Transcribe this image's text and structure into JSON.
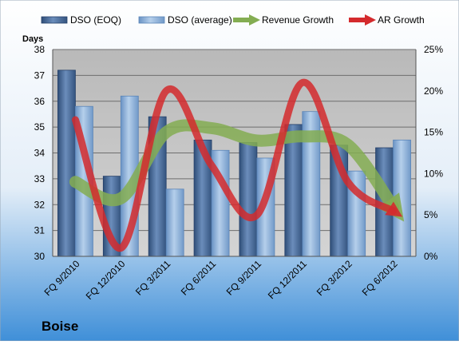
{
  "chart_data": {
    "type": "bar",
    "title": "Boise",
    "y_axis_label": "Days",
    "legend_position": "top",
    "categories": [
      "FQ 9/2010",
      "FQ 12/2010",
      "FQ 3/2011",
      "FQ 6/2011",
      "FQ 9/2011",
      "FQ 12/2011",
      "FQ 3/2012",
      "FQ 6/2012"
    ],
    "series": [
      {
        "name": "DSO (EOQ)",
        "kind": "bar",
        "axis": "left",
        "color": "#4a6b98",
        "values": [
          37.2,
          33.1,
          35.4,
          34.5,
          34.4,
          35.1,
          34.3,
          34.2
        ]
      },
      {
        "name": "DSO (average)",
        "kind": "bar",
        "axis": "left",
        "color": "#8fb3d9",
        "values": [
          35.8,
          36.2,
          32.6,
          34.1,
          33.8,
          35.6,
          33.3,
          34.5
        ]
      },
      {
        "name": "Revenue Growth",
        "kind": "line",
        "axis": "right",
        "color": "#84ad52",
        "values": [
          0.09,
          0.07,
          0.15,
          0.155,
          0.14,
          0.145,
          0.135,
          0.06
        ]
      },
      {
        "name": "AR Growth",
        "kind": "line",
        "axis": "right",
        "color": "#d42a2d",
        "values": [
          0.165,
          0.01,
          0.2,
          0.11,
          0.05,
          0.21,
          0.09,
          0.055
        ]
      }
    ],
    "y_left": {
      "min": 30,
      "max": 38,
      "ticks": [
        30,
        31,
        32,
        33,
        34,
        35,
        36,
        37,
        38
      ]
    },
    "y_right": {
      "min": 0,
      "max": 0.25,
      "ticks": [
        "0%",
        "5%",
        "10%",
        "15%",
        "20%",
        "25%"
      ]
    },
    "grid": true
  }
}
